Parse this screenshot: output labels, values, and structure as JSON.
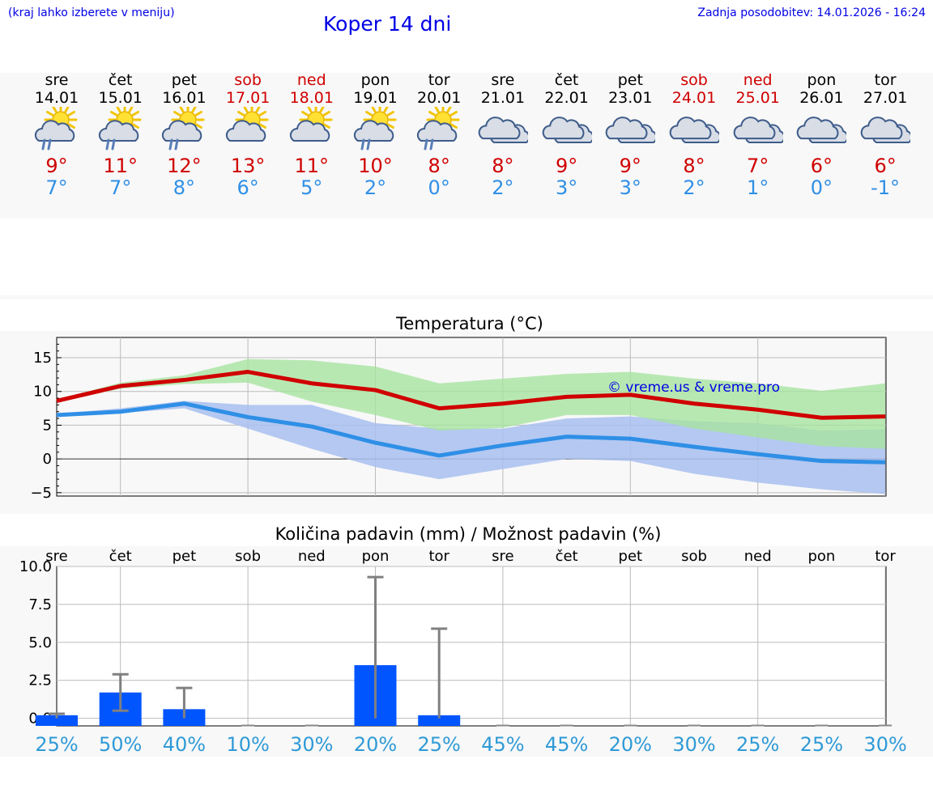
{
  "header": {
    "note": "(kraj lahko izberete v meniju)",
    "title": "Koper 14 dni",
    "updated": "Zadnja posodobitev: 14.01.2026 - 16:24"
  },
  "colors": {
    "max": "#d00000",
    "min": "#2f8fe6",
    "bar": "#0055ff",
    "max_band": "#a8e4a0",
    "min_band": "#a8c0f0"
  },
  "days": [
    {
      "name": "sre",
      "date": "14.01",
      "max": "9°",
      "min": "7°",
      "weekend": false,
      "icon": "sun-cloud-rain-icon"
    },
    {
      "name": "čet",
      "date": "15.01",
      "max": "11°",
      "min": "7°",
      "weekend": false,
      "icon": "sun-cloud-rain-icon"
    },
    {
      "name": "pet",
      "date": "16.01",
      "max": "12°",
      "min": "8°",
      "weekend": false,
      "icon": "sun-cloud-rain-icon"
    },
    {
      "name": "sob",
      "date": "17.01",
      "max": "13°",
      "min": "6°",
      "weekend": true,
      "icon": "sun-cloud-icon"
    },
    {
      "name": "ned",
      "date": "18.01",
      "max": "11°",
      "min": "5°",
      "weekend": true,
      "icon": "sun-cloud-icon"
    },
    {
      "name": "pon",
      "date": "19.01",
      "max": "10°",
      "min": "2°",
      "weekend": false,
      "icon": "sun-cloud-rain-icon"
    },
    {
      "name": "tor",
      "date": "20.01",
      "max": "8°",
      "min": "0°",
      "weekend": false,
      "icon": "sun-cloud-rain-icon"
    },
    {
      "name": "sre",
      "date": "21.01",
      "max": "8°",
      "min": "2°",
      "weekend": false,
      "icon": "cloud-icon"
    },
    {
      "name": "čet",
      "date": "22.01",
      "max": "9°",
      "min": "3°",
      "weekend": false,
      "icon": "cloud-icon"
    },
    {
      "name": "pet",
      "date": "23.01",
      "max": "9°",
      "min": "3°",
      "weekend": false,
      "icon": "cloud-icon"
    },
    {
      "name": "sob",
      "date": "24.01",
      "max": "8°",
      "min": "2°",
      "weekend": true,
      "icon": "cloud-icon"
    },
    {
      "name": "ned",
      "date": "25.01",
      "max": "7°",
      "min": "1°",
      "weekend": true,
      "icon": "cloud-icon"
    },
    {
      "name": "pon",
      "date": "26.01",
      "max": "6°",
      "min": "0°",
      "weekend": false,
      "icon": "cloud-icon"
    },
    {
      "name": "tor",
      "date": "27.01",
      "max": "6°",
      "min": "-1°",
      "weekend": false,
      "icon": "cloud-icon"
    }
  ],
  "chart_data": [
    {
      "type": "line",
      "title": "Temperatura (°C)",
      "watermark": "© vreme.us & vreme.pro",
      "ylim": [
        -5.5,
        18
      ],
      "yticks": [
        15,
        10,
        5,
        0,
        -5
      ],
      "ytick_labels": [
        "15",
        "10",
        "5",
        "0",
        "−5"
      ],
      "grid": true,
      "x_days": 14,
      "series": [
        {
          "name": "max",
          "values": [
            8.6,
            10.8,
            11.7,
            12.9,
            11.2,
            10.2,
            7.5,
            8.2,
            9.2,
            9.5,
            8.2,
            7.3,
            6.1,
            6.3
          ]
        },
        {
          "name": "min",
          "values": [
            6.5,
            7.0,
            8.2,
            6.2,
            4.8,
            2.4,
            0.5,
            2.0,
            3.3,
            3.0,
            1.8,
            0.7,
            -0.3,
            -0.5
          ]
        }
      ],
      "bands": [
        {
          "name": "max_range",
          "upper": [
            8.8,
            11.3,
            12.4,
            14.8,
            14.6,
            13.7,
            11.2,
            11.9,
            12.6,
            12.9,
            11.9,
            11.2,
            10.1,
            11.2
          ],
          "lower": [
            8.4,
            10.4,
            11.1,
            11.3,
            8.5,
            6.5,
            4.2,
            4.6,
            6.5,
            6.5,
            4.5,
            3.2,
            1.9,
            1.5
          ]
        },
        {
          "name": "min_range",
          "upper": [
            6.7,
            7.5,
            8.6,
            8.0,
            8.0,
            5.3,
            4.5,
            4.5,
            6.0,
            6.3,
            5.6,
            5.3,
            4.2,
            4.4
          ],
          "lower": [
            6.3,
            6.8,
            7.5,
            4.5,
            1.5,
            -1.2,
            -3.0,
            -1.5,
            0.0,
            -0.3,
            -2.2,
            -3.5,
            -4.5,
            -5.2
          ]
        }
      ]
    },
    {
      "type": "bar",
      "title": "Količina padavin (mm) / Možnost padavin (%)",
      "ylim": [
        -0.5,
        10
      ],
      "yticks": [
        10.0,
        7.5,
        5.0,
        2.5,
        0.0
      ],
      "ytick_labels": [
        "10.0",
        "7.5",
        "5.0",
        "2.5",
        "0.0"
      ],
      "categories": [
        "sre",
        "čet",
        "pet",
        "sob",
        "ned",
        "pon",
        "tor",
        "sre",
        "čet",
        "pet",
        "sob",
        "ned",
        "pon",
        "tor"
      ],
      "values": [
        0.2,
        1.7,
        0.6,
        0.0,
        0.0,
        3.5,
        0.2,
        0.0,
        0.0,
        0.0,
        0.0,
        0.0,
        0.0,
        0.0
      ],
      "err_low": [
        0.0,
        0.5,
        0.0,
        0.0,
        0.0,
        0.0,
        0.0,
        0.0,
        0.0,
        0.0,
        0.0,
        0.0,
        0.0,
        0.0
      ],
      "err_high": [
        0.3,
        2.9,
        2.0,
        0.0,
        0.0,
        9.3,
        5.9,
        0.0,
        0.0,
        0.0,
        0.0,
        0.0,
        0.0,
        0.0
      ],
      "probability": [
        "25%",
        "50%",
        "40%",
        "10%",
        "30%",
        "20%",
        "25%",
        "45%",
        "45%",
        "20%",
        "30%",
        "25%",
        "25%",
        "30%"
      ]
    }
  ]
}
